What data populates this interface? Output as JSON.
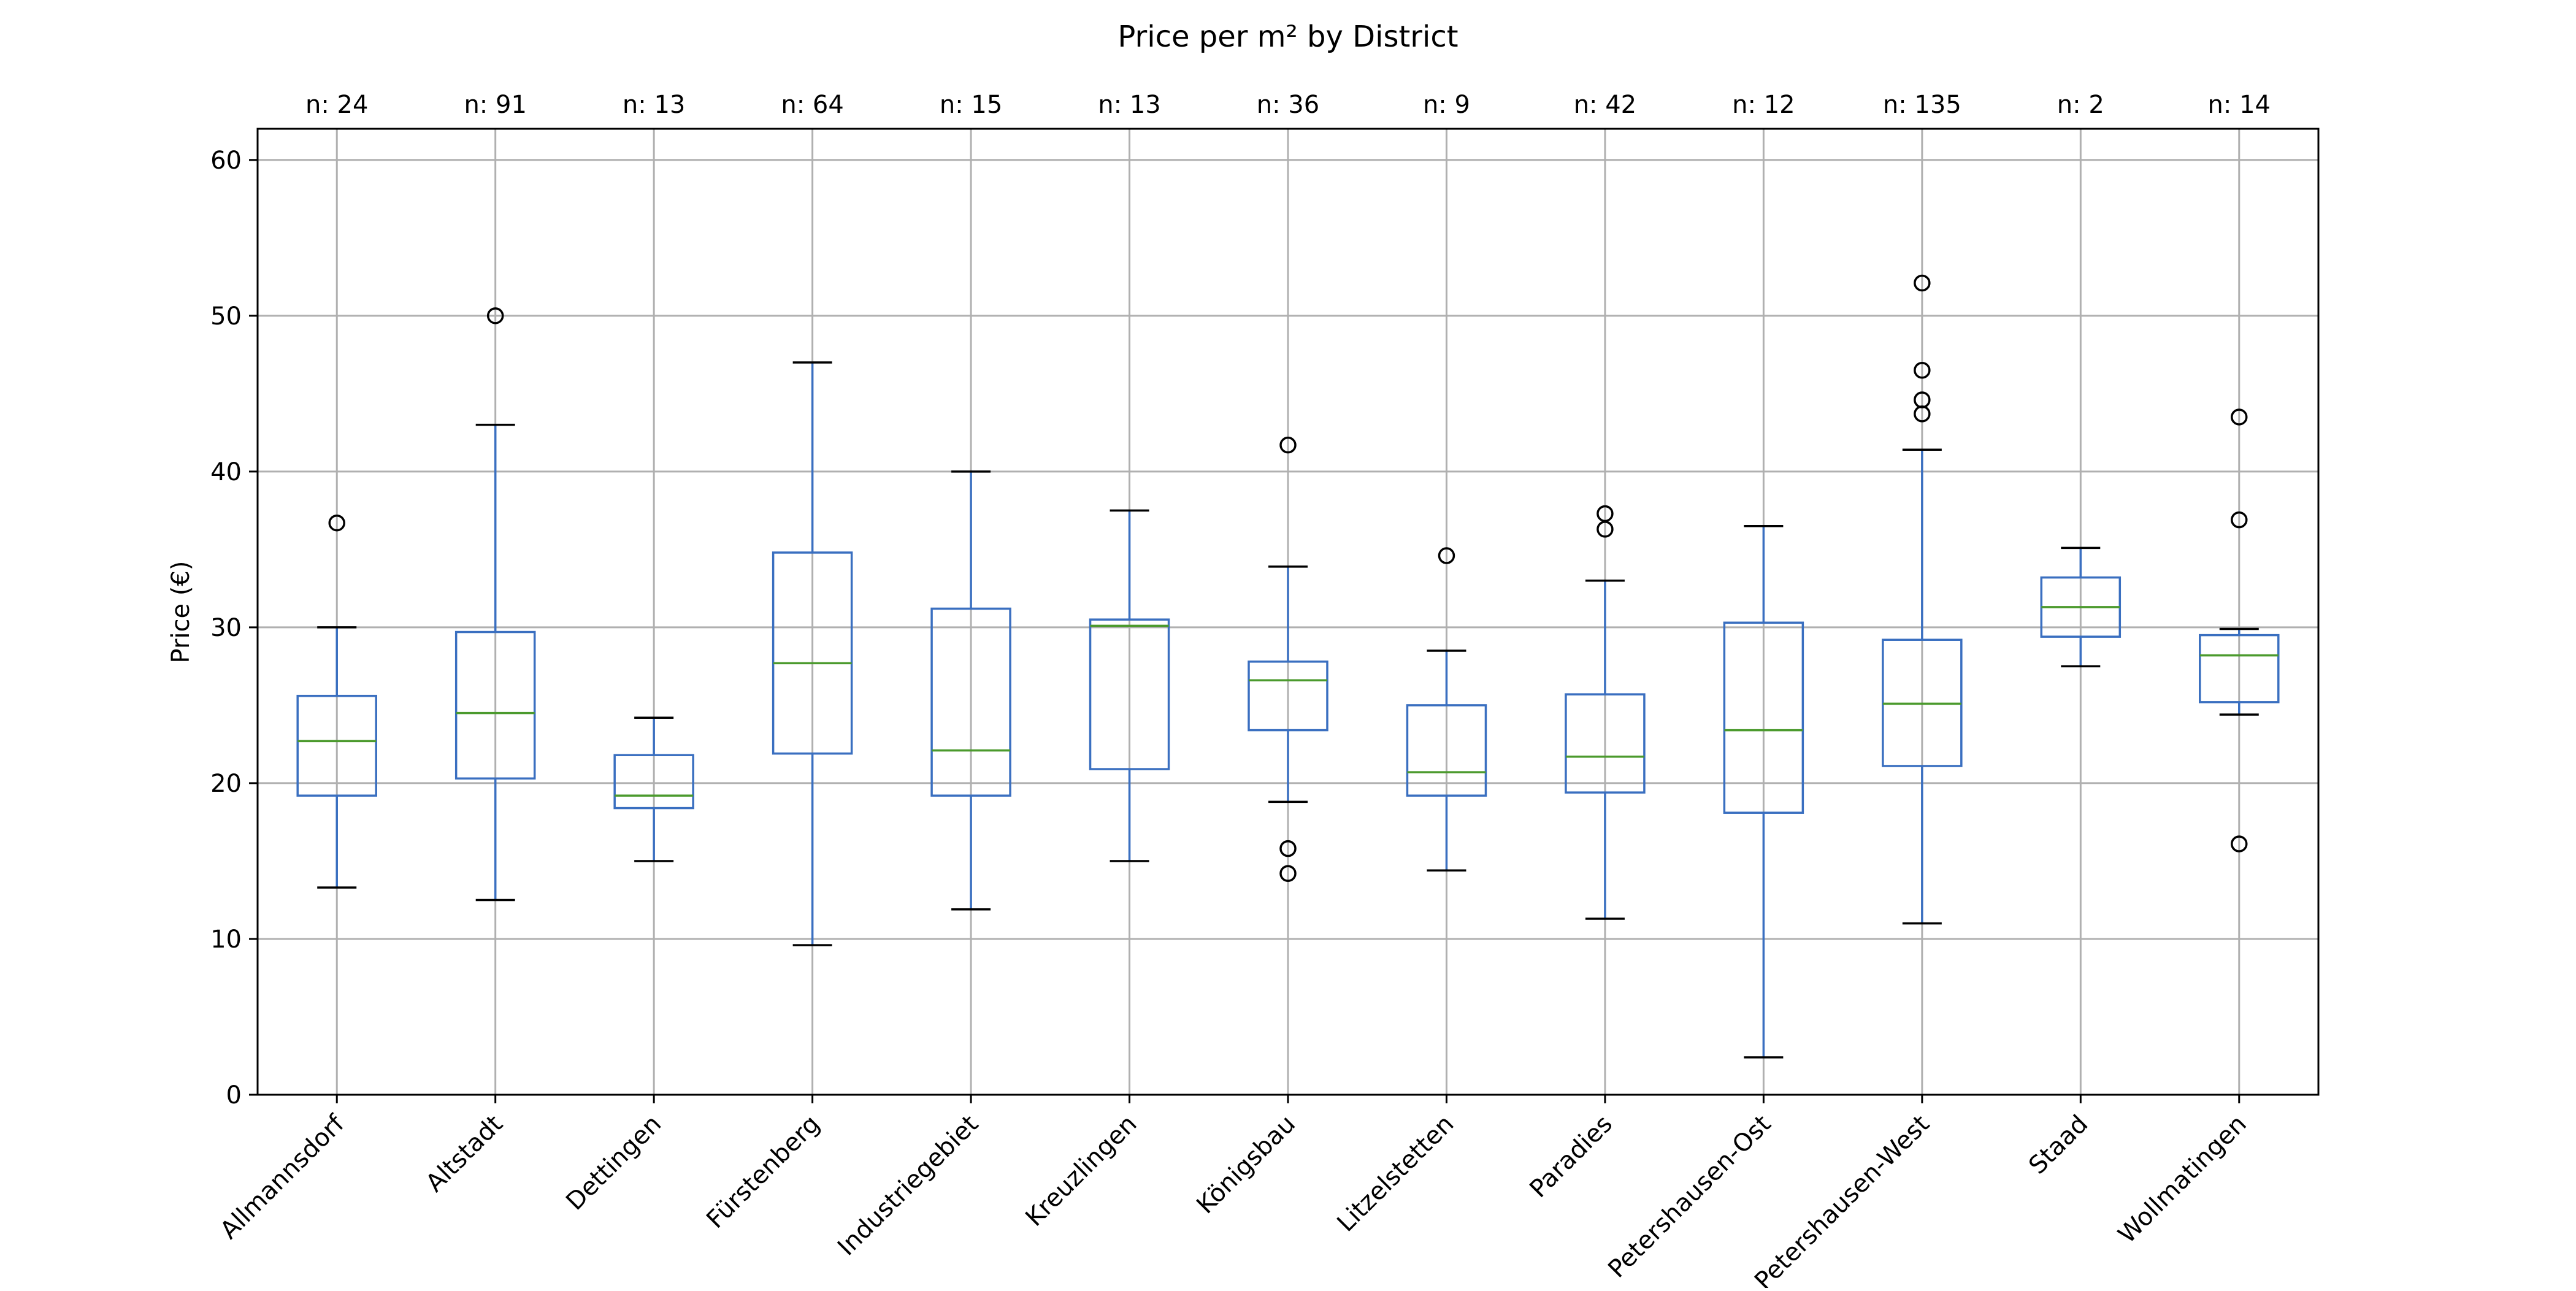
{
  "chart_data": {
    "type": "boxplot",
    "title": "Price per m² by District",
    "xlabel": "",
    "ylabel": "Price (€)",
    "ylim": [
      0,
      62
    ],
    "yticks": [
      0,
      10,
      20,
      30,
      40,
      50,
      60
    ],
    "grid": true,
    "categories": [
      "Allmannsdorf",
      "Altstadt",
      "Dettingen",
      "Fürstenberg",
      "Industriegebiet",
      "Kreuzlingen",
      "Königsbau",
      "Litzelstetten",
      "Paradies",
      "Petershausen-Ost",
      "Petershausen-West",
      "Staad",
      "Wollmatingen"
    ],
    "counts": [
      "n: 24",
      "n: 91",
      "n: 13",
      "n: 64",
      "n: 15",
      "n: 13",
      "n: 36",
      "n: 9",
      "n: 42",
      "n: 12",
      "n: 135",
      "n: 2",
      "n: 14"
    ],
    "boxes": [
      {
        "whisker_low": 13.3,
        "q1": 19.2,
        "median": 22.7,
        "q3": 25.6,
        "whisker_high": 30.0,
        "outliers": [
          36.7
        ]
      },
      {
        "whisker_low": 12.5,
        "q1": 20.3,
        "median": 24.5,
        "q3": 29.7,
        "whisker_high": 43.0,
        "outliers": [
          50.0
        ]
      },
      {
        "whisker_low": 15.0,
        "q1": 18.4,
        "median": 19.2,
        "q3": 21.8,
        "whisker_high": 24.2,
        "outliers": []
      },
      {
        "whisker_low": 9.6,
        "q1": 21.9,
        "median": 27.7,
        "q3": 34.8,
        "whisker_high": 47.0,
        "outliers": []
      },
      {
        "whisker_low": 11.9,
        "q1": 19.2,
        "median": 22.1,
        "q3": 31.2,
        "whisker_high": 40.0,
        "outliers": []
      },
      {
        "whisker_low": 15.0,
        "q1": 20.9,
        "median": 30.1,
        "q3": 30.5,
        "whisker_high": 37.5,
        "outliers": []
      },
      {
        "whisker_low": 18.8,
        "q1": 23.4,
        "median": 26.6,
        "q3": 27.8,
        "whisker_high": 33.9,
        "outliers": [
          41.7,
          15.8,
          14.2
        ]
      },
      {
        "whisker_low": 14.4,
        "q1": 19.2,
        "median": 20.7,
        "q3": 25.0,
        "whisker_high": 28.5,
        "outliers": [
          34.6
        ]
      },
      {
        "whisker_low": 11.3,
        "q1": 19.4,
        "median": 21.7,
        "q3": 25.7,
        "whisker_high": 33.0,
        "outliers": [
          37.3,
          36.3
        ]
      },
      {
        "whisker_low": 2.4,
        "q1": 18.1,
        "median": 23.4,
        "q3": 30.3,
        "whisker_high": 36.5,
        "outliers": []
      },
      {
        "whisker_low": 11.0,
        "q1": 21.1,
        "median": 25.1,
        "q3": 29.2,
        "whisker_high": 41.4,
        "outliers": [
          52.1,
          46.5,
          44.6,
          43.7
        ]
      },
      {
        "whisker_low": 27.5,
        "q1": 29.4,
        "median": 31.3,
        "q3": 33.2,
        "whisker_high": 35.1,
        "outliers": []
      },
      {
        "whisker_low": 24.4,
        "q1": 25.2,
        "median": 28.2,
        "q3": 29.5,
        "whisker_high": 29.9,
        "outliers": [
          43.5,
          36.9,
          16.1
        ]
      }
    ],
    "colors": {
      "box": "#3a6fc0",
      "median": "#4b9a2d",
      "whisker_cap": "#000000",
      "grid": "#b0b0b0",
      "outlier": "#000000"
    }
  }
}
